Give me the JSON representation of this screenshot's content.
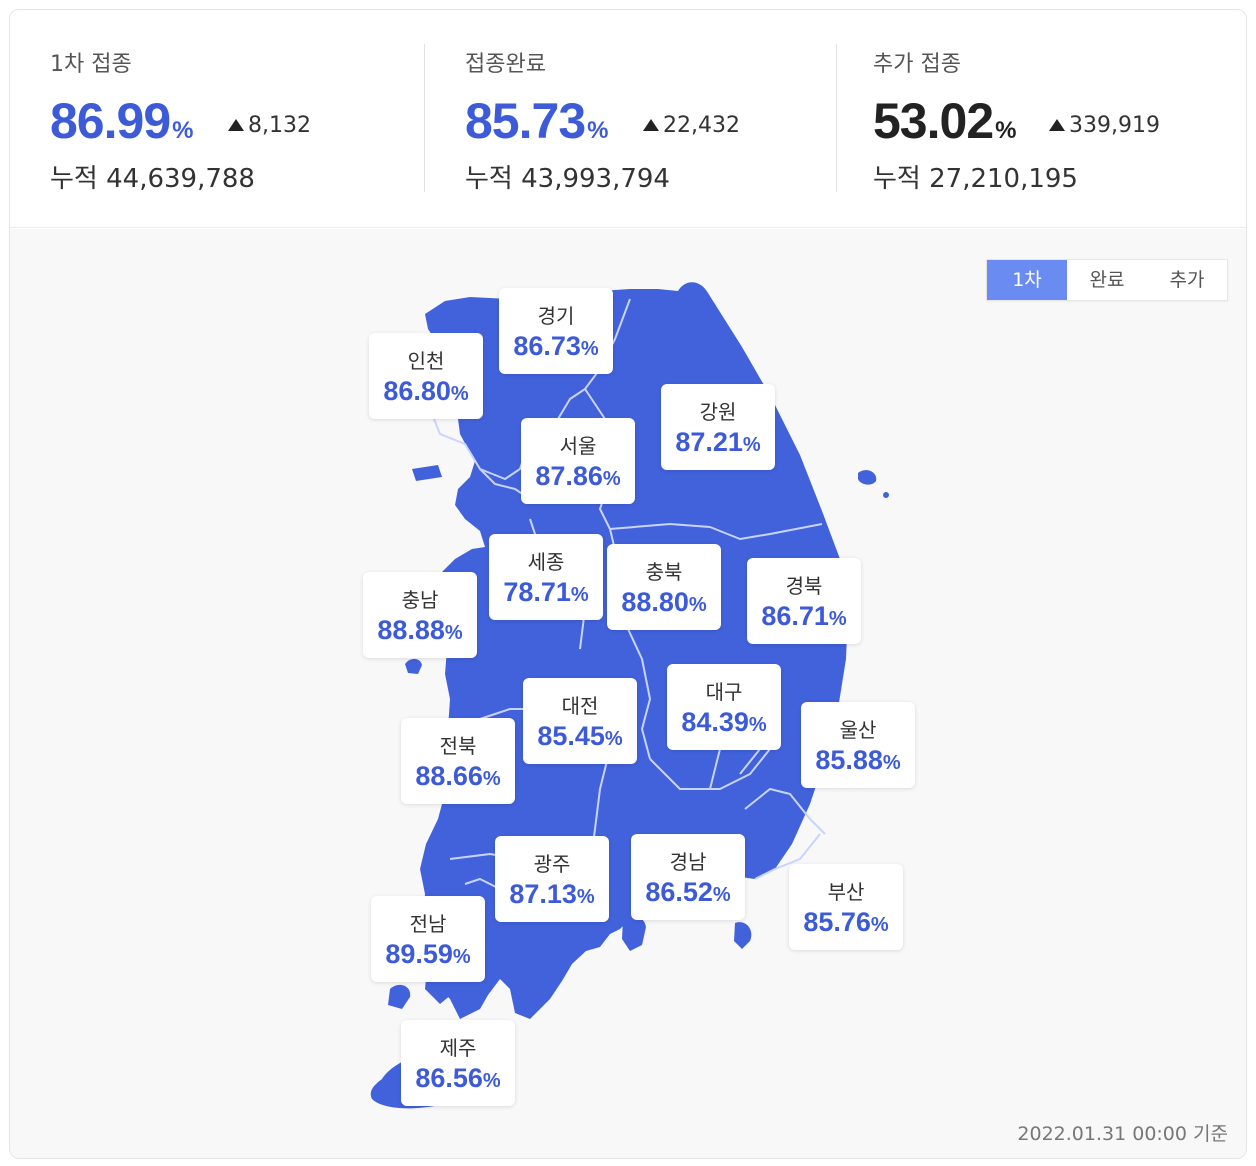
{
  "stats": [
    {
      "label": "1차 접종",
      "value": "86.99",
      "unit": "%",
      "delta": "8,132",
      "total": "누적 44,639,788",
      "color": "#3d5bd9"
    },
    {
      "label": "접종완료",
      "value": "85.73",
      "unit": "%",
      "delta": "22,432",
      "total": "누적 43,993,794",
      "color": "#3d5bd9"
    },
    {
      "label": "추가 접종",
      "value": "53.02",
      "unit": "%",
      "delta": "339,919",
      "total": "누적 27,210,195",
      "color": "#222222"
    }
  ],
  "toggle": {
    "options": [
      "1차",
      "완료",
      "추가"
    ],
    "selected": "1차"
  },
  "map": {
    "fill_color": "#4262dc",
    "border_color": "#c9d3ff",
    "background": "#f8f8f9"
  },
  "regions": [
    {
      "name": "인천",
      "value": "86.80",
      "unit": "%"
    },
    {
      "name": "경기",
      "value": "86.73",
      "unit": "%"
    },
    {
      "name": "서울",
      "value": "87.86",
      "unit": "%"
    },
    {
      "name": "강원",
      "value": "87.21",
      "unit": "%"
    },
    {
      "name": "세종",
      "value": "78.71",
      "unit": "%"
    },
    {
      "name": "충북",
      "value": "88.80",
      "unit": "%"
    },
    {
      "name": "충남",
      "value": "88.88",
      "unit": "%"
    },
    {
      "name": "경북",
      "value": "86.71",
      "unit": "%"
    },
    {
      "name": "대전",
      "value": "85.45",
      "unit": "%"
    },
    {
      "name": "대구",
      "value": "84.39",
      "unit": "%"
    },
    {
      "name": "전북",
      "value": "88.66",
      "unit": "%"
    },
    {
      "name": "울산",
      "value": "85.88",
      "unit": "%"
    },
    {
      "name": "광주",
      "value": "87.13",
      "unit": "%"
    },
    {
      "name": "경남",
      "value": "86.52",
      "unit": "%"
    },
    {
      "name": "부산",
      "value": "85.76",
      "unit": "%"
    },
    {
      "name": "전남",
      "value": "89.59",
      "unit": "%"
    },
    {
      "name": "제주",
      "value": "86.56",
      "unit": "%"
    }
  ],
  "footer": {
    "timestamp": "2022.01.31 00:00 기준"
  }
}
